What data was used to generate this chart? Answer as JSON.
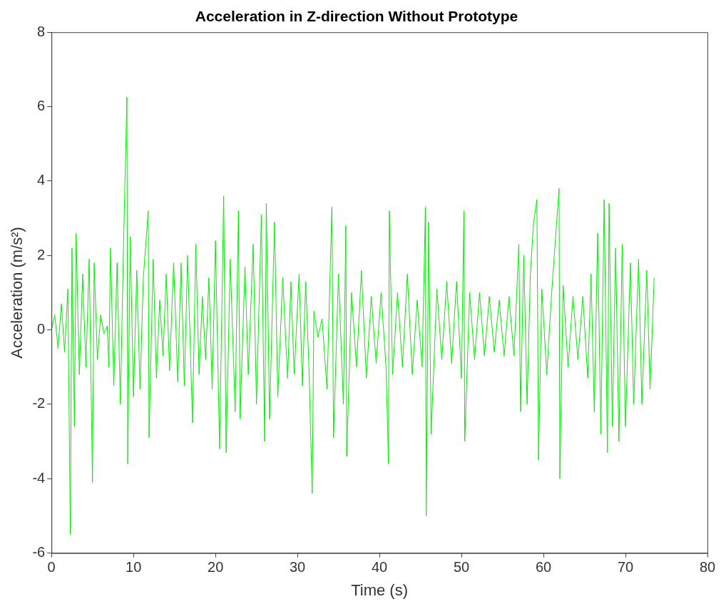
{
  "chart_data": {
    "type": "line",
    "title": "Acceleration in Z-direction Without Prototype",
    "xlabel": "Time (s)",
    "ylabel": "Acceleration (m/s²)",
    "xlim": [
      0,
      80
    ],
    "xticks": [
      0,
      10,
      20,
      30,
      40,
      50,
      60,
      70,
      80
    ],
    "ylim": [
      -6,
      8
    ],
    "yticks": [
      -6,
      -4,
      -2,
      0,
      2,
      4,
      6,
      8
    ],
    "grid": false,
    "legend": false,
    "marker": "none",
    "line_style": "solid",
    "series": [
      {
        "color": "#00ee00",
        "x": [
          0,
          0.4,
          0.8,
          1.2,
          1.6,
          2.0,
          2.3,
          2.5,
          2.8,
          3.0,
          3.4,
          3.8,
          4.2,
          4.6,
          5.0,
          5.2,
          5.6,
          6.0,
          6.4,
          6.8,
          7.0,
          7.2,
          7.6,
          8.0,
          8.4,
          8.8,
          9.2,
          9.3,
          9.6,
          10.0,
          10.4,
          10.8,
          11.2,
          11.8,
          11.9,
          12.4,
          12.8,
          13.2,
          13.6,
          14.0,
          14.4,
          14.9,
          15.4,
          15.8,
          16.2,
          16.6,
          17.2,
          17.6,
          18.0,
          18.4,
          18.8,
          19.2,
          19.6,
          20.0,
          20.5,
          21.0,
          21.3,
          21.8,
          22.4,
          22.8,
          23.0,
          23.6,
          24.0,
          24.6,
          25.0,
          25.6,
          26.0,
          26.2,
          26.6,
          27.2,
          27.6,
          28.2,
          28.8,
          29.2,
          29.6,
          30.2,
          30.6,
          31.0,
          31.4,
          31.8,
          32.0,
          32.5,
          33.0,
          33.6,
          34.0,
          34.2,
          34.4,
          35.0,
          35.6,
          35.9,
          36.0,
          36.6,
          37.2,
          37.8,
          38.4,
          39.0,
          39.6,
          40.2,
          40.8,
          41.1,
          41.2,
          41.6,
          42.2,
          42.8,
          43.4,
          44.0,
          44.6,
          45.2,
          45.6,
          45.7,
          46.0,
          46.3,
          47.0,
          47.6,
          48.2,
          48.8,
          49.4,
          50.0,
          50.3,
          50.4,
          51.0,
          51.6,
          52.2,
          52.8,
          53.4,
          54.0,
          54.6,
          55.2,
          55.8,
          56.4,
          57.0,
          57.2,
          57.6,
          58.0,
          58.4,
          58.8,
          59.2,
          59.4,
          59.8,
          60.4,
          61.0,
          61.9,
          62.0,
          62.4,
          63.0,
          63.6,
          64.2,
          64.8,
          65.4,
          65.8,
          66.2,
          66.6,
          67.0,
          67.4,
          67.8,
          68.0,
          68.4,
          68.8,
          69.2,
          69.6,
          70.0,
          70.6,
          71.0,
          71.6,
          72.0,
          72.6,
          73.0,
          73.5
        ],
        "values": [
          0,
          0.4,
          -0.5,
          0.7,
          -0.6,
          1.1,
          -5.5,
          2.2,
          -2.6,
          2.6,
          -1.2,
          1.5,
          -1.0,
          1.9,
          -4.1,
          1.8,
          -0.8,
          0.4,
          -0.1,
          0.1,
          -1.0,
          2.2,
          -1.5,
          1.8,
          -2.0,
          2.4,
          6.25,
          -3.6,
          2.5,
          -1.8,
          1.6,
          -1.6,
          1.4,
          3.2,
          -2.9,
          1.9,
          -1.3,
          0.8,
          -0.7,
          1.5,
          -1.1,
          1.8,
          -1.4,
          1.8,
          -1.5,
          2.0,
          -2.5,
          2.3,
          -1.2,
          0.9,
          -0.8,
          1.4,
          -1.6,
          2.4,
          -3.2,
          3.6,
          -3.3,
          1.9,
          -2.2,
          3.2,
          -2.4,
          1.7,
          -1.2,
          2.3,
          -2.0,
          3.1,
          -3.0,
          3.4,
          -2.4,
          2.9,
          -1.8,
          1.4,
          -1.3,
          1.3,
          -1.2,
          1.5,
          -1.5,
          1.3,
          -1.0,
          -4.4,
          0.5,
          -0.2,
          0.3,
          -1.6,
          1.7,
          3.3,
          -2.9,
          1.5,
          -2.0,
          2.8,
          -3.4,
          1.0,
          -1.0,
          1.6,
          -1.3,
          0.9,
          -0.9,
          1.0,
          -1.0,
          -3.6,
          3.2,
          -1.2,
          1.0,
          -1.0,
          1.5,
          -1.2,
          0.8,
          -1.0,
          3.3,
          -5.0,
          2.9,
          -2.8,
          1.1,
          -0.8,
          1.3,
          -0.9,
          1.3,
          -1.3,
          3.2,
          -3.0,
          1.0,
          -0.8,
          1.0,
          -0.7,
          0.9,
          -0.6,
          0.8,
          -0.7,
          0.9,
          -0.7,
          2.3,
          -2.2,
          2.0,
          -2.0,
          1.5,
          2.9,
          3.5,
          -3.5,
          1.1,
          -1.2,
          1.0,
          3.8,
          -4.0,
          1.2,
          -1.0,
          0.9,
          -0.8,
          0.9,
          -1.3,
          1.5,
          -2.2,
          2.6,
          -2.8,
          3.5,
          -3.3,
          3.4,
          -2.6,
          2.2,
          -3.0,
          2.3,
          -2.6,
          1.8,
          -2.0,
          1.9,
          -2.0,
          1.6,
          -1.6,
          1.4
        ]
      }
    ]
  }
}
